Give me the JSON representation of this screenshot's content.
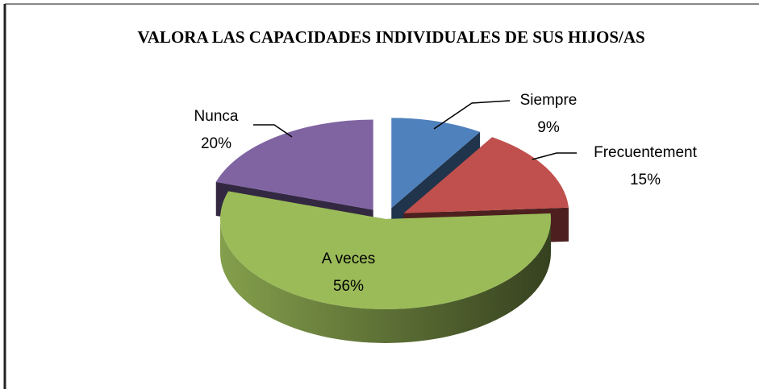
{
  "chart_data": {
    "type": "pie",
    "title": "VALORA LAS CAPACIDADES INDIVIDUALES DE SUS HIJOS/AS",
    "categories": [
      "Siempre",
      "Frecuentement",
      "A veces",
      "Nunca"
    ],
    "values": [
      9,
      15,
      56,
      20
    ],
    "value_labels": [
      "9%",
      "15%",
      "56%",
      "20%"
    ],
    "colors": [
      "#4f81bd",
      "#c0504d",
      "#9bbb59",
      "#8064a2"
    ]
  }
}
